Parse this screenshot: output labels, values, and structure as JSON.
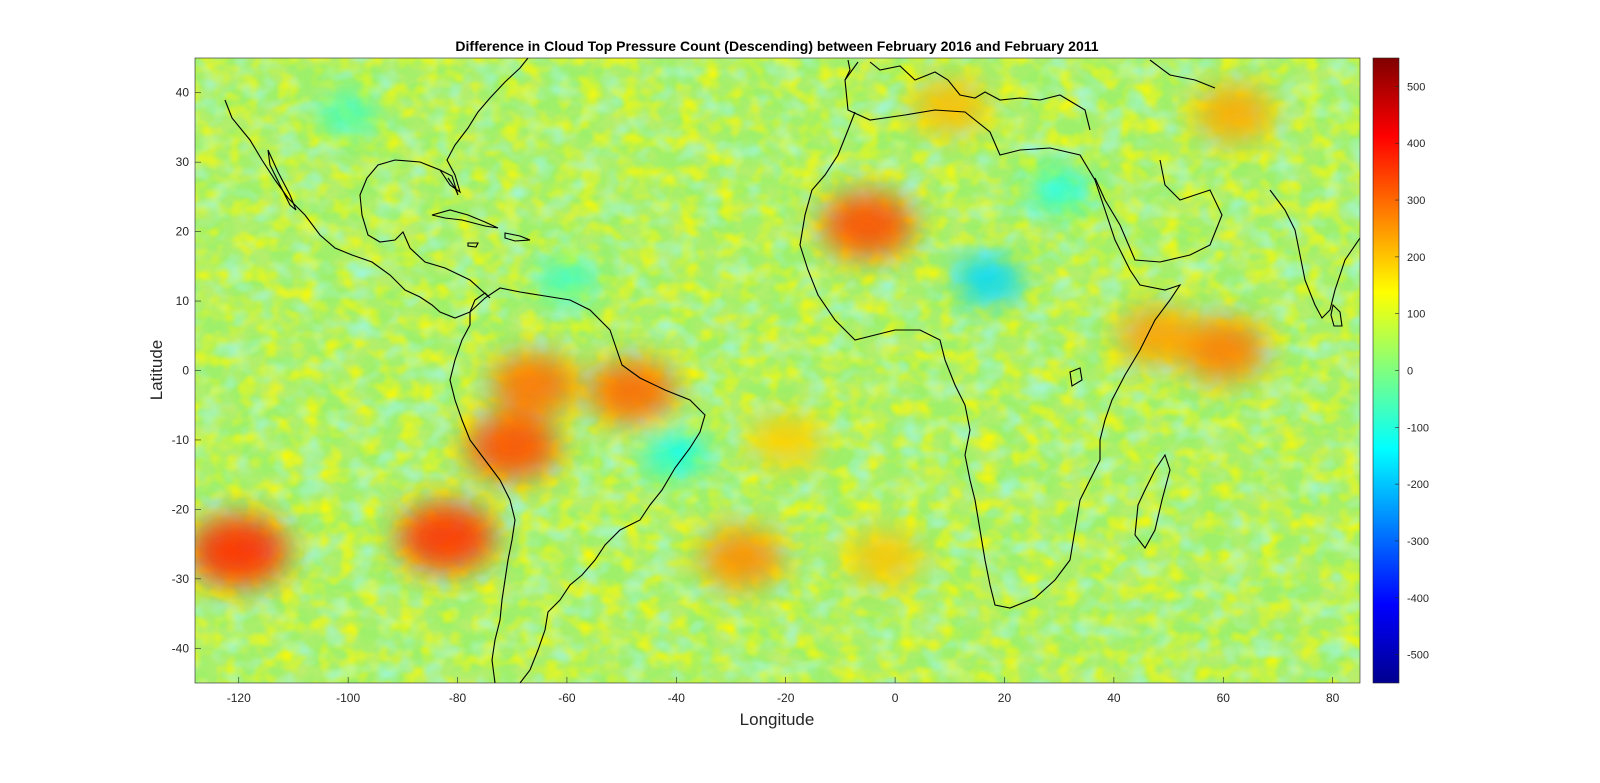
{
  "chart_data": {
    "type": "heatmap",
    "title": "Difference in Cloud Top Pressure Count (Descending) between February 2016 and February 2011",
    "xlabel": "Longitude",
    "ylabel": "Latitude",
    "xlim": [
      -128,
      85
    ],
    "ylim": [
      -45,
      45
    ],
    "xticks": [
      -120,
      -100,
      -80,
      -60,
      -40,
      -20,
      0,
      20,
      40,
      60,
      80
    ],
    "yticks": [
      40,
      30,
      20,
      10,
      0,
      -10,
      -20,
      -30,
      -40
    ],
    "colorbar": {
      "colormap": "jet",
      "clim": [
        -550,
        550
      ],
      "ticks": [
        500,
        400,
        300,
        200,
        100,
        0,
        -100,
        -200,
        -300,
        -400,
        -500
      ]
    },
    "anomalies": [
      {
        "lon": -5,
        "lat": 21,
        "value": 330
      },
      {
        "lon": -82,
        "lat": -24,
        "value": 360
      },
      {
        "lon": -120,
        "lat": -26,
        "value": 370
      },
      {
        "lon": -70,
        "lat": -11,
        "value": 330
      },
      {
        "lon": -66,
        "lat": -2,
        "value": 290
      },
      {
        "lon": -48,
        "lat": -3,
        "value": 300
      },
      {
        "lon": -28,
        "lat": -27,
        "value": 260
      },
      {
        "lon": 60,
        "lat": 3,
        "value": 280
      },
      {
        "lon": 48,
        "lat": 5,
        "value": 240
      },
      {
        "lon": 62,
        "lat": 37,
        "value": 230
      },
      {
        "lon": -20,
        "lat": -10,
        "value": 190
      },
      {
        "lon": -2,
        "lat": -27,
        "value": 200
      },
      {
        "lon": 10,
        "lat": 38,
        "value": 210
      },
      {
        "lon": -40,
        "lat": -12,
        "value": -130
      },
      {
        "lon": 17,
        "lat": 13,
        "value": -180
      },
      {
        "lon": 30,
        "lat": 26,
        "value": -110
      },
      {
        "lon": -60,
        "lat": 13,
        "value": -90
      },
      {
        "lon": -100,
        "lat": 37,
        "value": -80
      }
    ],
    "grid": false,
    "coastlines": true
  }
}
